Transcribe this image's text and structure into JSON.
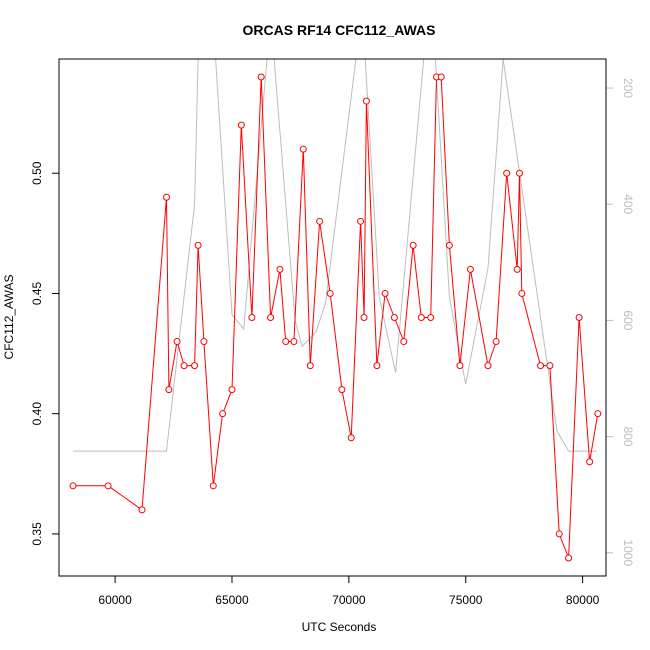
{
  "chart_data": {
    "type": "line",
    "title": "ORCAS RF14 CFC112_AWAS",
    "xlabel": "UTC Seconds",
    "ylabel": "CFC112_AWAS",
    "xlim": [
      57600,
      81000
    ],
    "ylim": [
      0.3325,
      0.5475
    ],
    "y2lim": [
      1040,
      150
    ],
    "y2_reversed": true,
    "x_ticks": [
      60000,
      65000,
      70000,
      75000,
      80000
    ],
    "x_tick_labels": [
      "60000",
      "65000",
      "70000",
      "75000",
      "80000"
    ],
    "y_ticks": [
      0.35,
      0.4,
      0.45,
      0.5
    ],
    "y_tick_labels": [
      "0.35",
      "0.40",
      "0.45",
      "0.50"
    ],
    "y2_ticks": [
      200,
      400,
      600,
      800,
      1000
    ],
    "y2_tick_labels": [
      "200",
      "400",
      "600",
      "800",
      "1000"
    ],
    "grid": false,
    "series": [
      {
        "color": "#ff0000",
        "markers": "open-circle",
        "x": [
          58200,
          59700,
          61150,
          62200,
          62300,
          62650,
          62950,
          63400,
          63550,
          63800,
          64200,
          64600,
          65000,
          65400,
          65850,
          66250,
          66650,
          67050,
          67300,
          67650,
          68050,
          68350,
          68750,
          69200,
          69700,
          70100,
          70500,
          70650,
          70750,
          71200,
          71550,
          71950,
          72350,
          72750,
          73100,
          73500,
          73750,
          73950,
          74300,
          74750,
          75200,
          75950,
          76300,
          76750,
          77200,
          77300,
          77400,
          78200,
          78600,
          79000,
          79400,
          79850,
          80300,
          80650
        ],
        "y": [
          0.37,
          0.37,
          0.36,
          0.49,
          0.41,
          0.43,
          0.42,
          0.42,
          0.47,
          0.43,
          0.37,
          0.4,
          0.41,
          0.52,
          0.44,
          0.54,
          0.44,
          0.46,
          0.43,
          0.43,
          0.51,
          0.42,
          0.48,
          0.45,
          0.41,
          0.39,
          0.48,
          0.44,
          0.53,
          0.42,
          0.45,
          0.44,
          0.43,
          0.47,
          0.44,
          0.44,
          0.54,
          0.54,
          0.47,
          0.42,
          0.46,
          0.42,
          0.43,
          0.5,
          0.46,
          0.5,
          0.45,
          0.42,
          0.42,
          0.35,
          0.34,
          0.44,
          0.38,
          0.4
        ]
      },
      {
        "color": "#bebebe",
        "axis": "right",
        "x": [
          58200,
          62200,
          63400,
          63550,
          64300,
          65000,
          65500,
          66500,
          66800,
          67700,
          68000,
          68600,
          69000,
          70300,
          70700,
          71300,
          72000,
          73200,
          73700,
          74300,
          75000,
          75950,
          76600,
          78900,
          79400,
          80600
        ],
        "y": [
          825,
          825,
          400,
          150,
          150,
          590,
          615,
          150,
          150,
          600,
          645,
          620,
          570,
          150,
          150,
          560,
          690,
          150,
          150,
          560,
          710,
          510,
          150,
          790,
          825,
          825
        ]
      }
    ]
  }
}
